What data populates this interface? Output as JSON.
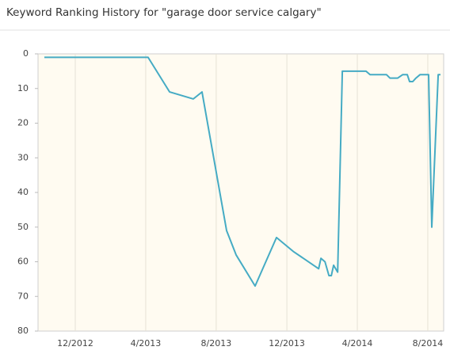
{
  "chart_data": {
    "type": "line",
    "title": "Keyword Ranking History for \"garage door service calgary\"",
    "x": [
      2012.771,
      2013.261,
      2013.363,
      2013.475,
      2013.516,
      2013.632,
      2013.677,
      2013.767,
      2013.868,
      2013.947,
      2014.067,
      2014.078,
      2014.097,
      2014.116,
      2014.127,
      2014.138,
      2014.157,
      2014.179,
      2014.291,
      2014.31,
      2014.388,
      2014.404,
      2014.441,
      2014.464,
      2014.486,
      2014.497,
      2014.512,
      2014.527,
      2014.546,
      2014.587,
      2014.602,
      2014.632,
      2014.643
    ],
    "series": [
      {
        "color": "#45abc4",
        "values": [
          1,
          1,
          11,
          13,
          11,
          51,
          58,
          67,
          53,
          57,
          62,
          59,
          60,
          64,
          64,
          61,
          63,
          5,
          5,
          6,
          6,
          7,
          7,
          6,
          6,
          8,
          8,
          7,
          6,
          6,
          50,
          6,
          6
        ]
      }
    ],
    "xlim": [
      2012.741,
      2014.658
    ],
    "xticks": [
      {
        "value": 2012.917,
        "label": "12/2012"
      },
      {
        "value": 2013.25,
        "label": "4/2013"
      },
      {
        "value": 2013.583,
        "label": "8/2013"
      },
      {
        "value": 2013.917,
        "label": "12/2013"
      },
      {
        "value": 2014.25,
        "label": "4/2014"
      },
      {
        "value": 2014.583,
        "label": "8/2014"
      }
    ],
    "ylim": [
      0,
      80
    ],
    "yticks": [
      0,
      10,
      20,
      30,
      40,
      50,
      60,
      70,
      80
    ],
    "y_inverted": true,
    "grid": true
  }
}
